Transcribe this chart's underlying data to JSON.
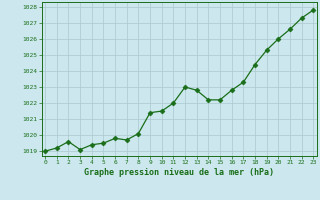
{
  "x": [
    0,
    1,
    2,
    3,
    4,
    5,
    6,
    7,
    8,
    9,
    10,
    11,
    12,
    13,
    14,
    15,
    16,
    17,
    18,
    19,
    20,
    21,
    22,
    23
  ],
  "y": [
    1019.0,
    1019.2,
    1019.6,
    1019.1,
    1019.4,
    1019.5,
    1019.8,
    1019.7,
    1020.1,
    1021.4,
    1021.5,
    1022.0,
    1023.0,
    1022.8,
    1022.2,
    1022.2,
    1022.8,
    1023.3,
    1024.4,
    1025.3,
    1026.0,
    1026.6,
    1027.3,
    1027.8
  ],
  "line_color": "#1a6e1a",
  "marker": "D",
  "marker_size": 2.5,
  "bg_color": "#cce8ee",
  "grid_color": "#b0cdd4",
  "title": "Graphe pression niveau de la mer (hPa)",
  "title_color": "#1a6e1a",
  "tick_color": "#1a6e1a",
  "ylim": [
    1018.7,
    1028.3
  ],
  "yticks": [
    1019,
    1020,
    1021,
    1022,
    1023,
    1024,
    1025,
    1026,
    1027,
    1028
  ],
  "xticks": [
    0,
    1,
    2,
    3,
    4,
    5,
    6,
    7,
    8,
    9,
    10,
    11,
    12,
    13,
    14,
    15,
    16,
    17,
    18,
    19,
    20,
    21,
    22,
    23
  ],
  "xlim": [
    -0.3,
    23.3
  ]
}
